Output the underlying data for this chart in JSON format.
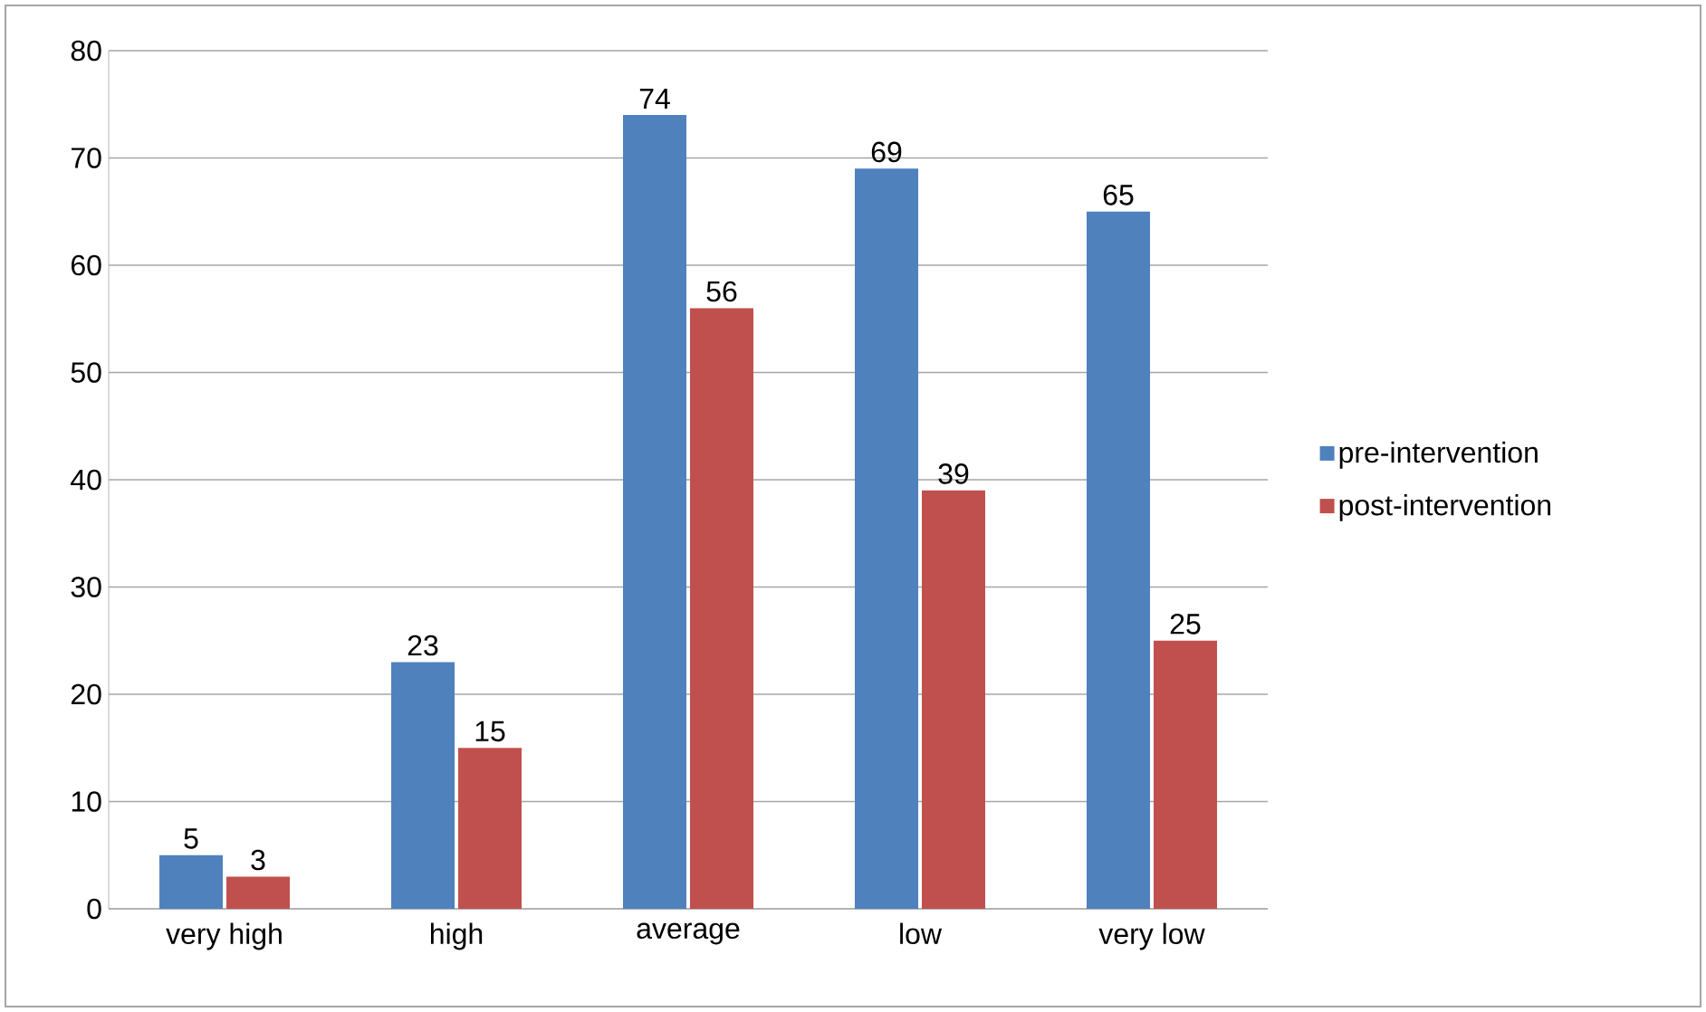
{
  "chart_data": {
    "type": "bar",
    "categories": [
      "very high",
      "high",
      "average",
      "low",
      "very low"
    ],
    "series": [
      {
        "name": "pre-intervention",
        "color": "#4f81bd",
        "values": [
          5,
          23,
          74,
          69,
          65
        ]
      },
      {
        "name": "post-intervention",
        "color": "#c0504d",
        "values": [
          3,
          15,
          56,
          39,
          25
        ]
      }
    ],
    "ylim": [
      0,
      80
    ],
    "yticks": [
      0,
      10,
      20,
      30,
      40,
      50,
      60,
      70,
      80
    ],
    "grid": "y",
    "legend": "right",
    "data_labels": true
  }
}
